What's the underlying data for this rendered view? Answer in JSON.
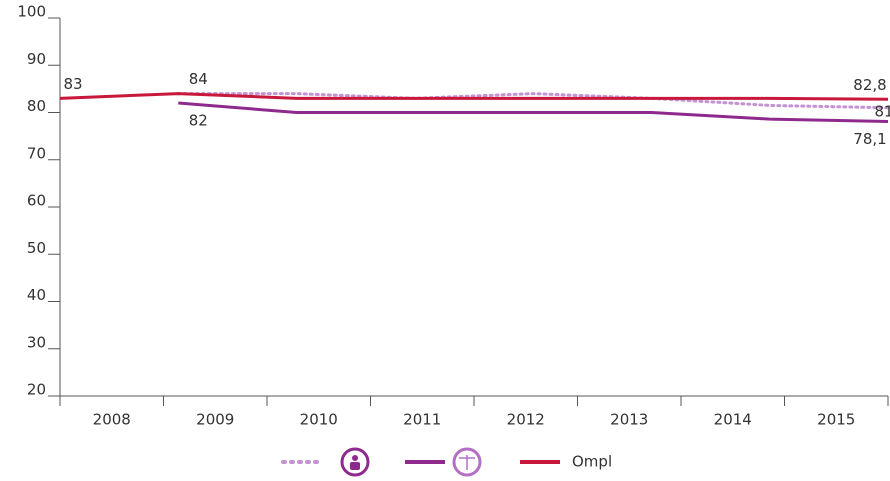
{
  "chart_data": {
    "type": "line",
    "categories": [
      "2008",
      "2009",
      "2010",
      "2011",
      "2012",
      "2013",
      "2014",
      "2015"
    ],
    "series": [
      {
        "color": "#c493d2",
        "dash": "dotted",
        "values": [
          null,
          84,
          84,
          83,
          84,
          83,
          81.5,
          81
        ],
        "value_labels": [
          null,
          null,
          null,
          null,
          null,
          null,
          null,
          "81"
        ]
      },
      {
        "color": "#8e2a8e",
        "values": [
          null,
          82,
          80,
          80,
          80,
          80,
          78.6,
          78.1
        ],
        "value_labels": [
          null,
          "82",
          null,
          null,
          null,
          null,
          null,
          "78,1"
        ]
      },
      {
        "name": "Ompl",
        "color": "#c8183c",
        "values": [
          83,
          84,
          83,
          83,
          83,
          83,
          83,
          82.8
        ],
        "value_labels": [
          "83",
          "84",
          null,
          null,
          null,
          null,
          null,
          "82,8"
        ]
      }
    ],
    "ylim": [
      20,
      100
    ],
    "yticks": [
      20,
      30,
      40,
      50,
      60,
      70,
      80,
      90,
      100
    ],
    "grid": false
  }
}
